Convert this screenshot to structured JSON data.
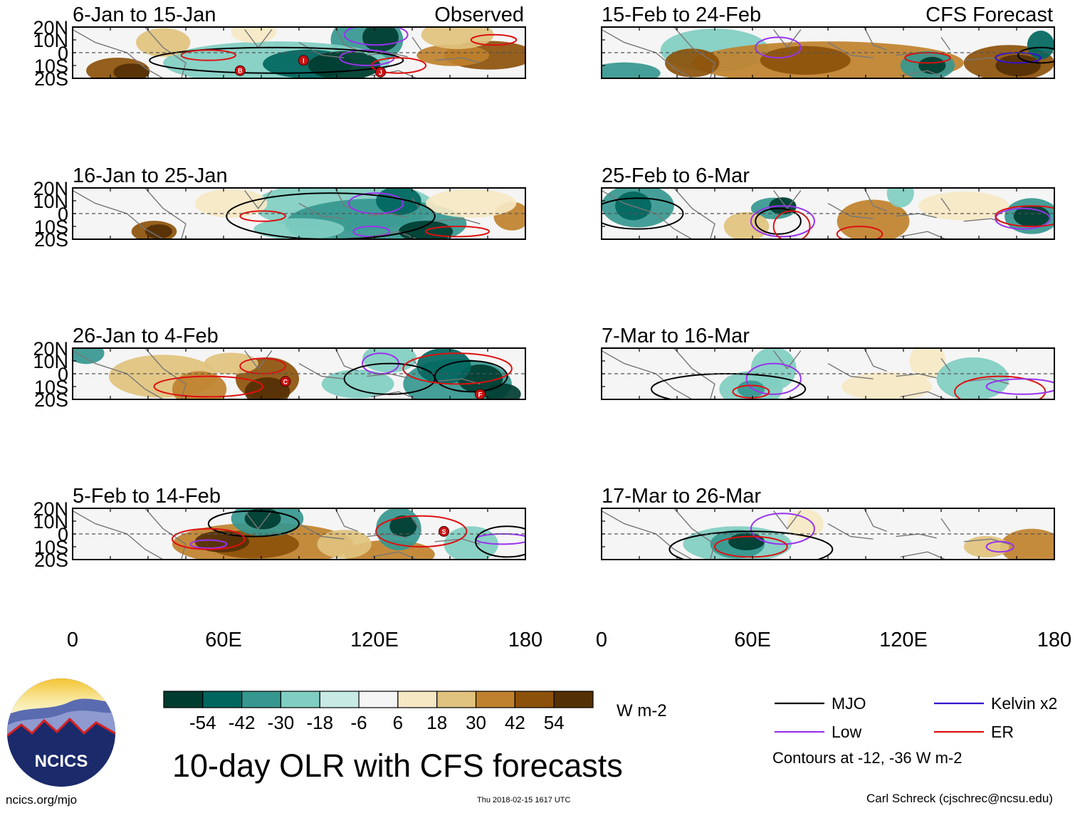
{
  "colors": {
    "scale": [
      "#003c30",
      "#01665e",
      "#35978f",
      "#80cdc1",
      "#c7eae5",
      "#f5f5f5",
      "#f6e8c3",
      "#dfc27d",
      "#bf812d",
      "#8c510a",
      "#543005"
    ],
    "mjo": "#000000",
    "low": "#9933ee",
    "kelvin": "#3311cc",
    "er": "#dd1111",
    "coast": "#777777"
  },
  "y_ticks": [
    "20N",
    "10N",
    "0",
    "10S",
    "20S"
  ],
  "x_ticks": [
    "0",
    "60E",
    "120E",
    "180"
  ],
  "observed_label": "Observed",
  "forecast_label": "CFS Forecast",
  "panels_left": [
    {
      "title": "6-Jan to 15-Jan",
      "tc_labels": [
        "B",
        "I",
        "J"
      ]
    },
    {
      "title": "16-Jan to 25-Jan",
      "tc_labels": []
    },
    {
      "title": "26-Jan to 4-Feb",
      "tc_labels": [
        "C",
        "F"
      ]
    },
    {
      "title": "5-Feb to 14-Feb",
      "tc_labels": [
        "S"
      ]
    }
  ],
  "panels_right": [
    {
      "title": "15-Feb to 24-Feb"
    },
    {
      "title": "25-Feb to 6-Mar"
    },
    {
      "title": "7-Mar to 16-Mar"
    },
    {
      "title": "17-Mar to 26-Mar"
    }
  ],
  "colorbar": {
    "labels": [
      "-54",
      "-42",
      "-30",
      "-18",
      "-6",
      "6",
      "18",
      "30",
      "42",
      "54"
    ],
    "units": "W m-2"
  },
  "legend": [
    {
      "label": "MJO",
      "color_key": "mjo"
    },
    {
      "label": "Kelvin x2",
      "color_key": "kelvin"
    },
    {
      "label": "Low",
      "color_key": "low"
    },
    {
      "label": "ER",
      "color_key": "er"
    }
  ],
  "contour_note": "Contours at -12, -36 W m-2",
  "main_title": "10-day OLR with CFS forecasts",
  "logo_text": "NCICS",
  "site": "ncics.org/mjo",
  "stamp": "Thu 2018-02-15 1617 UTC",
  "author": "Carl Schreck (cjschrec@ncsu.edu)"
}
